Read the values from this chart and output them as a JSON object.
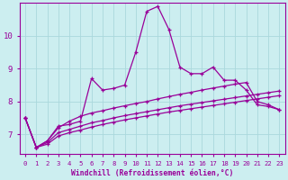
{
  "xlabel": "Windchill (Refroidissement éolien,°C)",
  "background_color": "#cceef0",
  "line_color": "#990099",
  "grid_color": "#b0d8dc",
  "xlim": [
    -0.5,
    23.5
  ],
  "ylim": [
    6.4,
    11.0
  ],
  "xticks": [
    0,
    1,
    2,
    3,
    4,
    5,
    6,
    7,
    8,
    9,
    10,
    11,
    12,
    13,
    14,
    15,
    16,
    17,
    18,
    19,
    20,
    21,
    22,
    23
  ],
  "yticks": [
    7,
    8,
    9,
    10
  ],
  "series": [
    [
      7.5,
      6.6,
      6.8,
      7.25,
      7.3,
      7.4,
      8.7,
      8.35,
      8.4,
      8.5,
      9.5,
      10.75,
      10.9,
      10.2,
      9.05,
      8.85,
      8.85,
      9.05,
      8.65,
      8.65,
      8.35,
      7.9,
      7.85,
      7.75
    ],
    [
      7.5,
      6.6,
      6.8,
      7.2,
      7.4,
      7.55,
      7.65,
      7.72,
      7.8,
      7.87,
      7.94,
      8.0,
      8.08,
      8.15,
      8.22,
      8.28,
      8.35,
      8.41,
      8.47,
      8.53,
      8.58,
      8.0,
      7.9,
      7.75
    ],
    [
      7.5,
      6.6,
      6.75,
      7.05,
      7.15,
      7.25,
      7.35,
      7.42,
      7.5,
      7.57,
      7.63,
      7.69,
      7.75,
      7.81,
      7.87,
      7.92,
      7.97,
      8.02,
      8.07,
      8.12,
      8.17,
      8.22,
      8.27,
      8.32
    ],
    [
      7.5,
      6.6,
      6.7,
      6.95,
      7.05,
      7.13,
      7.22,
      7.3,
      7.37,
      7.44,
      7.5,
      7.56,
      7.62,
      7.68,
      7.73,
      7.78,
      7.83,
      7.88,
      7.93,
      7.98,
      8.03,
      8.08,
      8.13,
      8.18
    ]
  ]
}
